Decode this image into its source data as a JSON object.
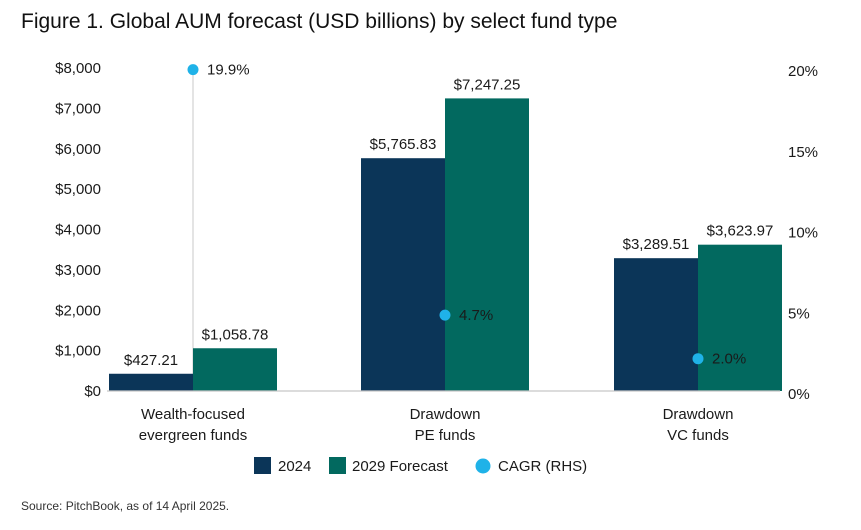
{
  "title": "Figure 1. Global AUM forecast (USD billions) by select fund type",
  "source": "Source: PitchBook, as of 14 April 2025.",
  "colors": {
    "bar_2024": "#0b3558",
    "bar_2029": "#02695f",
    "cagr": "#1fb2e8",
    "axis": "#c8c8c8"
  },
  "chart_data": {
    "type": "bar",
    "categories": [
      [
        "Wealth-focused",
        "evergreen funds"
      ],
      [
        "Drawdown",
        "PE funds"
      ],
      [
        "Drawdown",
        "VC funds"
      ]
    ],
    "series": [
      {
        "name": "2024",
        "values": [
          427.21,
          5765.83,
          3289.51
        ],
        "labels": [
          "$427.21",
          "$5,765.83",
          "$3,289.51"
        ]
      },
      {
        "name": "2029 Forecast",
        "values": [
          1058.78,
          7247.25,
          3623.97
        ],
        "labels": [
          "$1,058.78",
          "$7,247.25",
          "$3,623.97"
        ]
      }
    ],
    "cagr": {
      "name": "CAGR (RHS)",
      "values": [
        19.9,
        4.7,
        2.0
      ],
      "labels": [
        "19.9%",
        "4.7%",
        "2.0%"
      ]
    },
    "ylim": [
      0,
      8000
    ],
    "yticks": [
      "$0",
      "$1,000",
      "$2,000",
      "$3,000",
      "$4,000",
      "$5,000",
      "$6,000",
      "$7,000",
      "$8,000"
    ],
    "y2lim": [
      0,
      20
    ],
    "y2ticks": [
      "0%",
      "5%",
      "10%",
      "15%",
      "20%"
    ],
    "legend": [
      "2024",
      "2029 Forecast",
      "CAGR (RHS)"
    ]
  }
}
